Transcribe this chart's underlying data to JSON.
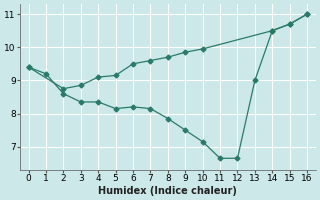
{
  "line1_x": [
    0,
    1,
    2,
    3,
    4,
    5,
    6,
    7,
    8,
    9,
    10,
    11,
    12,
    13,
    14,
    15,
    16
  ],
  "line1_y": [
    9.4,
    9.2,
    8.6,
    8.35,
    8.35,
    8.15,
    8.2,
    8.15,
    7.85,
    7.5,
    7.15,
    6.65,
    6.65,
    9.0,
    10.5,
    10.7,
    11.0
  ],
  "line2_x": [
    0,
    2,
    3,
    4,
    5,
    6,
    7,
    8,
    9,
    10,
    14,
    15,
    16
  ],
  "line2_y": [
    9.4,
    8.75,
    8.85,
    9.1,
    9.15,
    9.5,
    9.6,
    9.7,
    9.85,
    9.95,
    10.5,
    10.7,
    11.0
  ],
  "color": "#2a7a6a",
  "bg_color": "#cce8e8",
  "grid_color": "#b0d8d8",
  "xlabel": "Humidex (Indice chaleur)",
  "xlim": [
    -0.5,
    16.5
  ],
  "ylim": [
    6.3,
    11.3
  ],
  "yticks": [
    7,
    8,
    9,
    10,
    11
  ],
  "xticks": [
    0,
    1,
    2,
    3,
    4,
    5,
    6,
    7,
    8,
    9,
    10,
    11,
    12,
    13,
    14,
    15,
    16
  ],
  "tick_fontsize": 6.5,
  "xlabel_fontsize": 7
}
